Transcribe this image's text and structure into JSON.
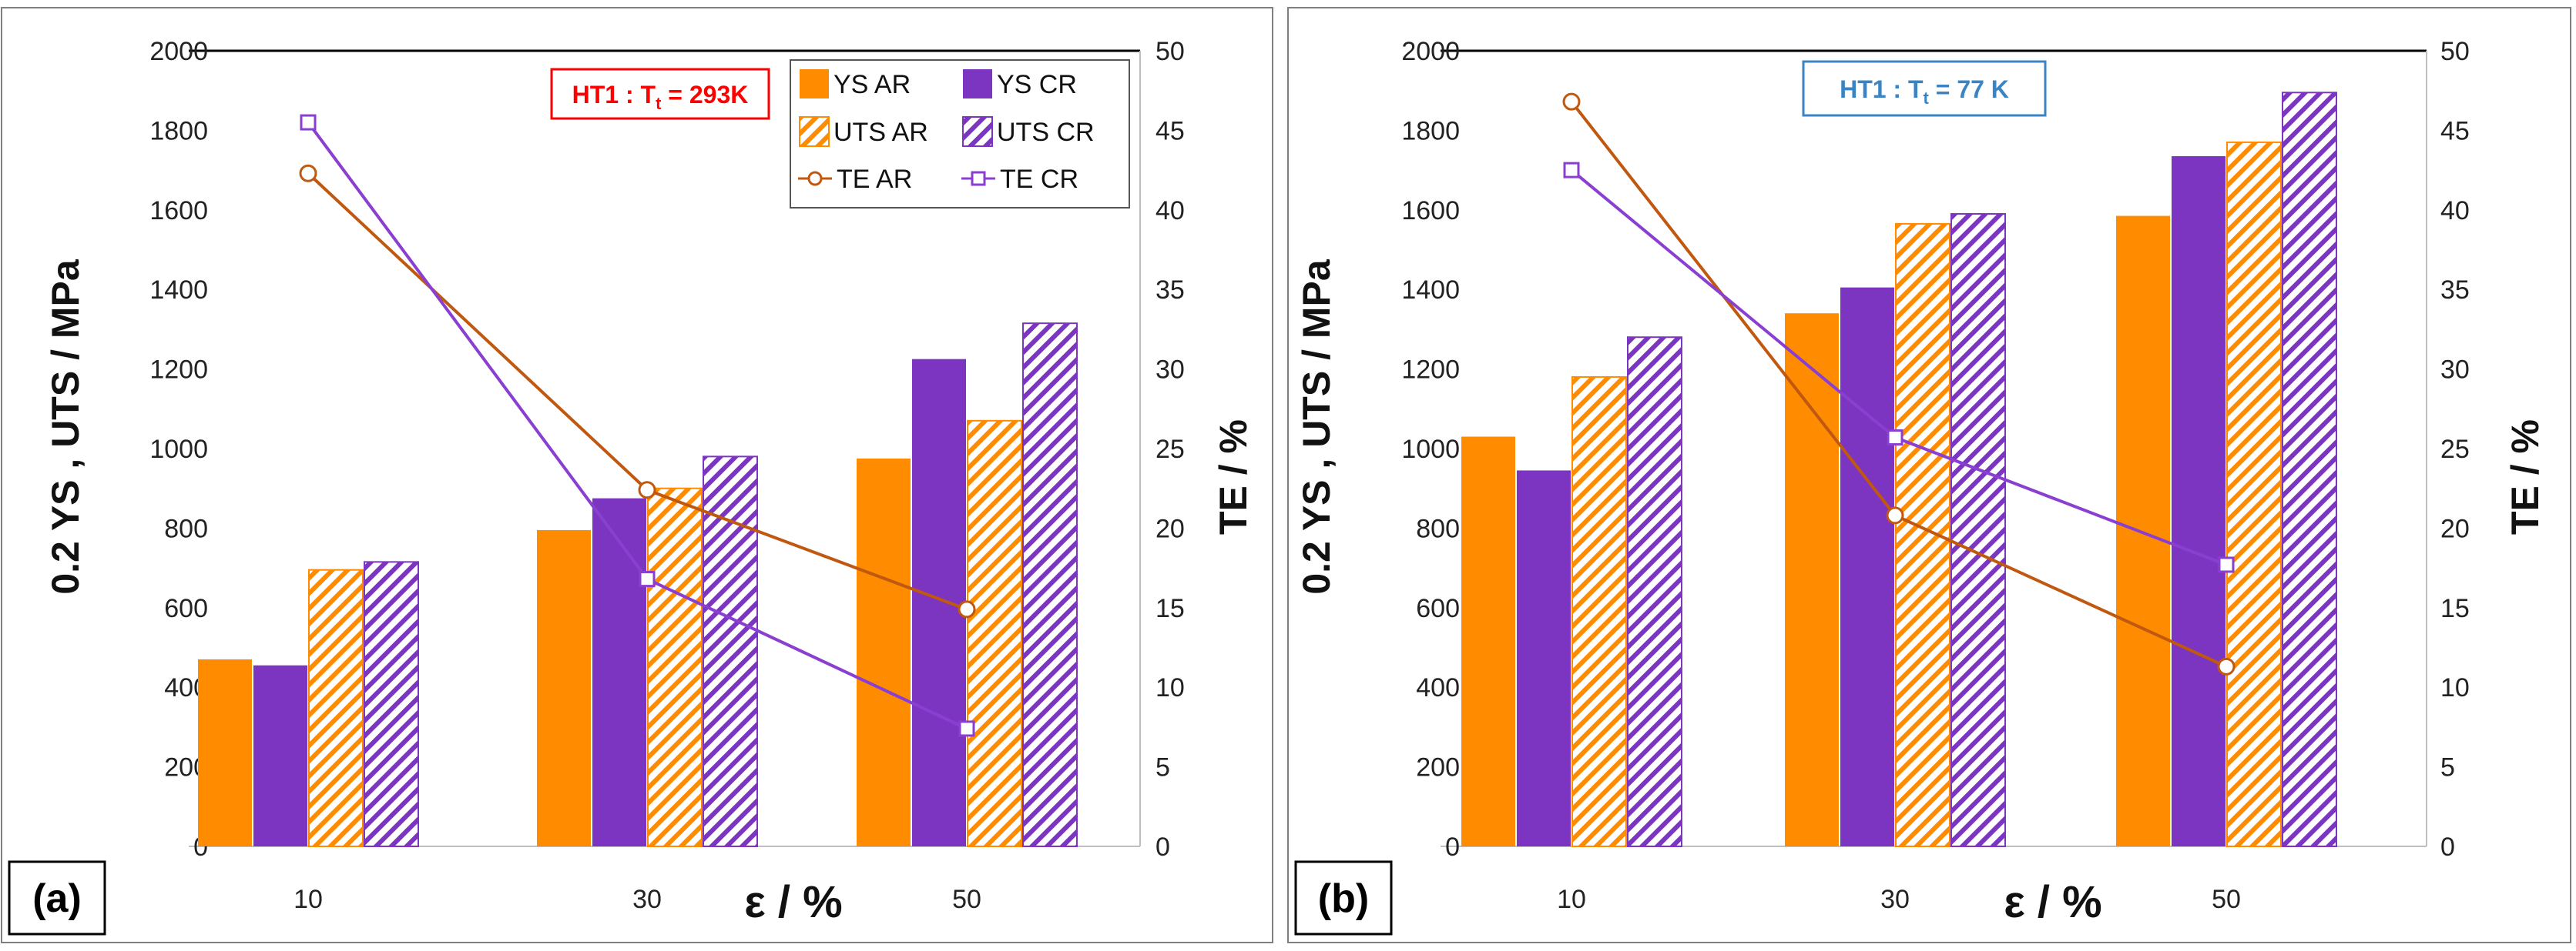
{
  "colors": {
    "ar": "#ff8c00",
    "cr": "#7b35c1",
    "ar_line": "#c0580f",
    "cr_line": "#8a3fd0",
    "red_note": "#ff0000",
    "blue_note": "#3a84c4"
  },
  "chart_data": [
    {
      "type": "bar",
      "panel_label": "(a)",
      "annotation": {
        "main": "HT1 : T",
        "sub": "t",
        "tail": " = 293K"
      },
      "categories": [
        "10",
        "30",
        "50"
      ],
      "xlabel": "ε / %",
      "ylabel": "0.2 YS , UTS / MPa",
      "y2label": "TE / %",
      "ylim": [
        0,
        2000
      ],
      "yticks": [
        "0",
        "200",
        "400",
        "600",
        "800",
        "1000",
        "1200",
        "1400",
        "1600",
        "1800",
        "2000"
      ],
      "y2lim": [
        0,
        50
      ],
      "y2ticks": [
        "0",
        "5",
        "10",
        "15",
        "20",
        "25",
        "30",
        "35",
        "40",
        "45",
        "50"
      ],
      "series": [
        {
          "name": "YS AR",
          "kind": "bar",
          "values": [
            470,
            795,
            975
          ]
        },
        {
          "name": "YS CR",
          "kind": "bar",
          "values": [
            455,
            875,
            1225
          ]
        },
        {
          "name": "UTS AR",
          "kind": "bar",
          "values": [
            695,
            900,
            1070
          ]
        },
        {
          "name": "UTS CR",
          "kind": "bar",
          "values": [
            715,
            980,
            1315
          ]
        },
        {
          "name": "TE AR",
          "kind": "line",
          "axis": "right",
          "values": [
            42.3,
            22.4,
            14.9
          ]
        },
        {
          "name": "TE CR",
          "kind": "line",
          "axis": "right",
          "values": [
            45.5,
            16.8,
            7.4
          ]
        }
      ],
      "legend": [
        "YS AR",
        "YS CR",
        "UTS AR",
        "UTS CR",
        "TE AR",
        "TE CR"
      ]
    },
    {
      "type": "bar",
      "panel_label": "(b)",
      "annotation": {
        "main": "HT1 : T",
        "sub": "t",
        "tail": " = 77 K"
      },
      "categories": [
        "10",
        "30",
        "50"
      ],
      "xlabel": "ε / %",
      "ylabel": "0.2 YS , UTS / MPa",
      "y2label": "TE / %",
      "ylim": [
        0,
        2000
      ],
      "yticks": [
        "0",
        "200",
        "400",
        "600",
        "800",
        "1000",
        "1200",
        "1400",
        "1600",
        "1800",
        "2000"
      ],
      "y2lim": [
        0,
        50
      ],
      "y2ticks": [
        "0",
        "5",
        "10",
        "15",
        "20",
        "25",
        "30",
        "35",
        "40",
        "45",
        "50"
      ],
      "series": [
        {
          "name": "YS AR",
          "kind": "bar",
          "values": [
            1030,
            1340,
            1585
          ]
        },
        {
          "name": "YS CR",
          "kind": "bar",
          "values": [
            945,
            1405,
            1735
          ]
        },
        {
          "name": "UTS AR",
          "kind": "bar",
          "values": [
            1180,
            1565,
            1770
          ]
        },
        {
          "name": "UTS CR",
          "kind": "bar",
          "values": [
            1280,
            1590,
            1895
          ]
        },
        {
          "name": "TE AR",
          "kind": "line",
          "axis": "right",
          "values": [
            46.8,
            20.8,
            11.3
          ]
        },
        {
          "name": "TE CR",
          "kind": "line",
          "axis": "right",
          "values": [
            42.5,
            25.7,
            17.7
          ]
        }
      ]
    }
  ]
}
